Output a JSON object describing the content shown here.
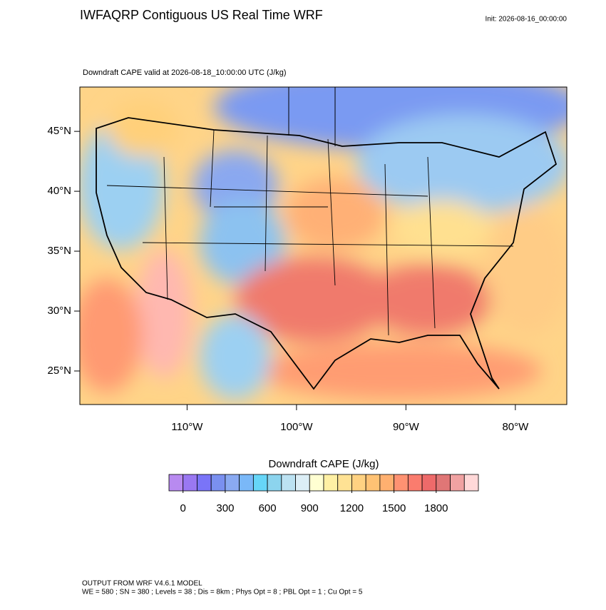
{
  "title": "IWFAQRP Contiguous US Real Time WRF",
  "init": "Init: 2026-08-16_00:00:00",
  "subtitle": "Downdraft CAPE valid at 2026-08-18_10:00:00 UTC   (J/kg)",
  "map": {
    "lon_range": [
      -119.8,
      -75.3
    ],
    "lat_range": [
      22.2,
      48.7
    ],
    "lat_ticks": [
      {
        "value": 45,
        "label": "45°N"
      },
      {
        "value": 40,
        "label": "40°N"
      },
      {
        "value": 35,
        "label": "35°N"
      },
      {
        "value": 30,
        "label": "30°N"
      },
      {
        "value": 25,
        "label": "25°N"
      }
    ],
    "lon_ticks": [
      {
        "value": -110,
        "label": "110°W"
      },
      {
        "value": -100,
        "label": "100°W"
      },
      {
        "value": -90,
        "label": "90°W"
      },
      {
        "value": -80,
        "label": "80°W"
      }
    ]
  },
  "colorbar": {
    "title": "Downdraft CAPE  (J/kg)",
    "lim": [
      -100,
      2100
    ],
    "ticks": [
      0,
      300,
      600,
      900,
      1200,
      1500,
      1800
    ],
    "colors": [
      "#b88af0",
      "#9a78f2",
      "#7a74f8",
      "#7a90f0",
      "#8aaaf2",
      "#7ab8f8",
      "#66d6f8",
      "#8cd4ee",
      "#bce2f2",
      "#dceef6",
      "#ffffd2",
      "#fff0a4",
      "#ffe294",
      "#ffd282",
      "#ffc274",
      "#ffb070",
      "#ff9272",
      "#fa7c6e",
      "#ee6a6a",
      "#e07676",
      "#f0a2a2",
      "#ffd8d8"
    ]
  },
  "footer": [
    "OUTPUT FROM WRF V4.6.1 MODEL",
    "WE = 580 ; SN = 380 ; Levels = 38 ; Dis = 8km ; Phys Opt = 8 ; PBL Opt = 1 ; Cu Opt = 5"
  ]
}
